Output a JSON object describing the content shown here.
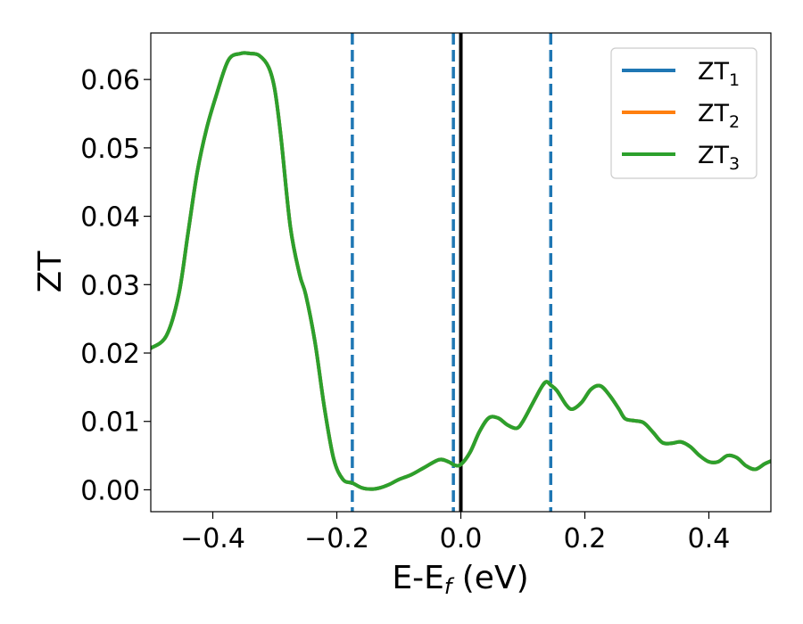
{
  "chart_data": {
    "type": "line",
    "xlabel": "E-E",
    "xlabel_subscript": "f",
    "xlabel_unit": " (eV)",
    "ylabel": "ZT",
    "xlim": [
      -0.5,
      0.5
    ],
    "ylim": [
      -0.0032,
      0.0668
    ],
    "xticks": [
      -0.4,
      -0.2,
      0.0,
      0.2,
      0.4
    ],
    "xtick_labels": [
      "−0.4",
      "−0.2",
      "0.0",
      "0.2",
      "0.4"
    ],
    "yticks": [
      0.0,
      0.01,
      0.02,
      0.03,
      0.04,
      0.05,
      0.06
    ],
    "ytick_labels": [
      "0.00",
      "0.01",
      "0.02",
      "0.03",
      "0.04",
      "0.05",
      "0.06"
    ],
    "grid": false,
    "legend_position": "top-right",
    "series": [
      {
        "name": "ZT",
        "subscript": "1",
        "color": "#1f77b4"
      },
      {
        "name": "ZT",
        "subscript": "2",
        "color": "#ff7f0e"
      },
      {
        "name": "ZT",
        "subscript": "3",
        "color": "#2ca02c"
      }
    ],
    "curve": {
      "x": [
        -0.5,
        -0.475,
        -0.455,
        -0.44,
        -0.425,
        -0.41,
        -0.395,
        -0.375,
        -0.355,
        -0.34,
        -0.325,
        -0.31,
        -0.3,
        -0.29,
        -0.275,
        -0.26,
        -0.25,
        -0.235,
        -0.22,
        -0.205,
        -0.19,
        -0.175,
        -0.16,
        -0.145,
        -0.13,
        -0.115,
        -0.1,
        -0.08,
        -0.06,
        -0.035,
        -0.02,
        -0.01,
        0.0,
        0.015,
        0.03,
        0.045,
        0.06,
        0.075,
        0.09,
        0.1,
        0.115,
        0.13,
        0.138,
        0.145,
        0.155,
        0.17,
        0.18,
        0.195,
        0.21,
        0.225,
        0.24,
        0.255,
        0.265,
        0.28,
        0.295,
        0.31,
        0.325,
        0.34,
        0.355,
        0.37,
        0.385,
        0.4,
        0.415,
        0.43,
        0.445,
        0.46,
        0.475,
        0.49,
        0.5
      ],
      "y": [
        0.0207,
        0.0225,
        0.0285,
        0.0375,
        0.0465,
        0.0528,
        0.0575,
        0.0628,
        0.0638,
        0.0638,
        0.0635,
        0.0618,
        0.0585,
        0.0515,
        0.0385,
        0.0315,
        0.0285,
        0.0215,
        0.012,
        0.0045,
        0.0015,
        0.001,
        0.0003,
        0.0001,
        0.0003,
        0.0008,
        0.0015,
        0.0022,
        0.0032,
        0.0044,
        0.0041,
        0.0036,
        0.0037,
        0.0055,
        0.0085,
        0.0105,
        0.0105,
        0.0095,
        0.009,
        0.01,
        0.0125,
        0.015,
        0.0158,
        0.0153,
        0.0145,
        0.0124,
        0.0118,
        0.0128,
        0.0147,
        0.0152,
        0.0138,
        0.0118,
        0.0104,
        0.0101,
        0.0098,
        0.0084,
        0.0069,
        0.0068,
        0.007,
        0.0063,
        0.005,
        0.0041,
        0.0041,
        0.005,
        0.0047,
        0.0035,
        0.003,
        0.0038,
        0.0042
      ]
    },
    "vertical_lines": [
      {
        "x": -0.175,
        "style": "dashed",
        "color": "#1f77b4"
      },
      {
        "x": -0.012,
        "style": "dashed",
        "color": "#1f77b4"
      },
      {
        "x": 0.0,
        "style": "solid",
        "color": "#000000"
      },
      {
        "x": 0.145,
        "style": "dashed",
        "color": "#1f77b4"
      }
    ]
  }
}
